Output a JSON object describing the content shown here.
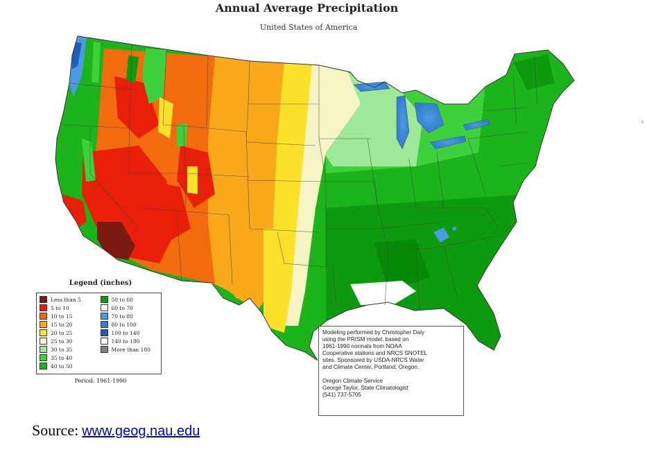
{
  "title": "Annual Average Precipitation",
  "subtitle": "United States of America",
  "legend": {
    "title": "Legend (inches)",
    "period": "Period: 1961-1990",
    "items": [
      {
        "label": "Less than 5",
        "color": "#7a1a10"
      },
      {
        "label": "5 to 10",
        "color": "#e8200a"
      },
      {
        "label": "10 to 15",
        "color": "#f26b0f"
      },
      {
        "label": "15 to 20",
        "color": "#f8a818"
      },
      {
        "label": "20 to 25",
        "color": "#fbe22a"
      },
      {
        "label": "25 to 30",
        "color": "#f6f3c4"
      },
      {
        "label": "30 to 35",
        "color": "#9ee89a"
      },
      {
        "label": "35 to 40",
        "color": "#3ed13e"
      },
      {
        "label": "40 to 50",
        "color": "#1bb51b"
      },
      {
        "label": "50 to 60",
        "color": "#0e9a0e"
      },
      {
        "label": "60 to 70",
        "color": "#ffffff"
      },
      {
        "label": "70 to 80",
        "color": "#4b9be0"
      },
      {
        "label": "80 to 100",
        "color": "#2f7ed3"
      },
      {
        "label": "100 to 140",
        "color": "#1e5fb8"
      },
      {
        "label": "140 to 180",
        "color": "#ffffff"
      },
      {
        "label": "More than 180",
        "color": "#808080"
      }
    ]
  },
  "credits": {
    "lines": [
      "Modeling performed by Christopher Daly",
      "using the PRISM model, based on",
      "1961-1990 normals from NOAA",
      "Cooperative stations and NRCS SNOTEL",
      "sites.  Sponsored by USDA-NRCS Water",
      "and Climate Center, Portland, Oregon.",
      "",
      "Oregon Climate Service",
      "George Taylor, State Climatologist",
      "(541) 737-5705"
    ]
  },
  "source": {
    "label": "Source:",
    "link_text": "www.geog.nau.edu"
  }
}
